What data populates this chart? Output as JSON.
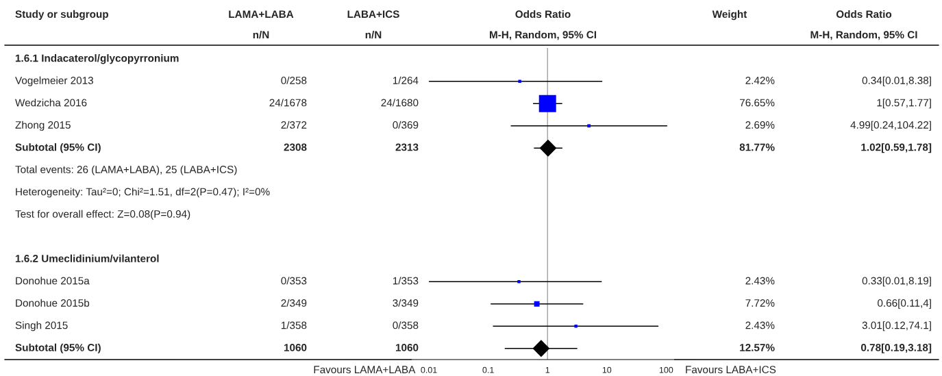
{
  "chart_data": [
    {
      "type": "other",
      "title": "Study or subgroup",
      "categories": [
        "1.6.1 Indacaterol/glycopyrronium",
        "Vogelmeier 2013",
        "Wedzicha 2016",
        "Zhong 2015",
        "Subtotal (95% CI)",
        "Total events: 26 (LAMA+LABA), 25 (LABA+ICS)",
        "Heterogeneity: Tau²=0; Chi²=1.51, df=2(P=0.47); I²=0%",
        "Test for overall effect: Z=0.08(P=0.94)",
        null,
        "1.6.2 Umeclidinium/vilanterol",
        "Donohue 2015a",
        "Donohue 2015b",
        "Singh 2015",
        "Subtotal (95% CI)"
      ]
    },
    {
      "type": "other",
      "title": "LAMA+LABA",
      "subtitle": "n/N",
      "categories": [
        null,
        "0/258",
        "24/1678",
        "2/372",
        "2308",
        null,
        null,
        null,
        null,
        null,
        "0/353",
        "2/349",
        "1/358",
        "1060"
      ]
    },
    {
      "type": "other",
      "title": "LABA+ICS",
      "subtitle": "n/N",
      "categories": [
        null,
        "1/264",
        "24/1680",
        "0/369",
        "2313",
        null,
        null,
        null,
        null,
        null,
        "1/353",
        "3/349",
        "0/358",
        "1060"
      ]
    },
    {
      "type": "scatter",
      "orientation": "horizontal",
      "title": "Odds Ratio",
      "subtitle": "M-H, Random, 95% CI",
      "log": "x",
      "xlim": [
        0.005,
        140
      ],
      "xticks": [
        0.01,
        0.1,
        1,
        10,
        100
      ],
      "categories": [
        null,
        null,
        null,
        null,
        null,
        null,
        null,
        null,
        null,
        null,
        null,
        null,
        null,
        null
      ],
      "ref_lines": [
        {
          "axis": "x",
          "value": 1,
          "color": "#a0a0a0"
        }
      ],
      "annotations": [
        "Favours LAMA+LABA",
        "Favours LABA+ICS"
      ],
      "series": [
        {
          "type": "bubble",
          "marker": "square",
          "color": "#0000ff",
          "values": [
            null,
            0.34,
            1,
            4.99,
            null,
            null,
            null,
            null,
            null,
            null,
            0.33,
            0.66,
            3.01,
            null
          ],
          "errors": [
            null,
            [
              0.01,
              8.38
            ],
            [
              0.57,
              1.77
            ],
            [
              0.24,
              104.22
            ],
            null,
            null,
            null,
            null,
            null,
            null,
            [
              0.01,
              8.19
            ],
            [
              0.11,
              4
            ],
            [
              0.12,
              74.1
            ],
            null
          ],
          "sizes": [
            null,
            0.0316,
            1,
            0.0351,
            null,
            null,
            null,
            null,
            null,
            null,
            0.0317,
            0.1007,
            0.0317,
            null
          ]
        },
        {
          "type": "scatter",
          "marker": "diamond",
          "color": "#000000",
          "values": [
            null,
            null,
            null,
            null,
            1.02,
            null,
            null,
            null,
            null,
            null,
            null,
            null,
            null,
            0.78
          ],
          "errors": [
            null,
            null,
            null,
            null,
            [
              0.59,
              1.78
            ],
            null,
            null,
            null,
            null,
            null,
            null,
            null,
            null,
            [
              0.19,
              3.18
            ]
          ]
        }
      ]
    },
    {
      "type": "other",
      "title": "Weight",
      "categories": [
        null,
        "2.42%",
        "76.65%",
        "2.69%",
        "81.77%",
        null,
        null,
        null,
        null,
        null,
        "2.43%",
        "7.72%",
        "2.43%",
        "12.57%"
      ]
    },
    {
      "type": "other",
      "title": "Odds Ratio",
      "subtitle": "M-H, Random, 95% CI",
      "categories": [
        null,
        "0.34[0.01,8.38]",
        "1[0.57,1.77]",
        "4.99[0.24,104.22]",
        "1.02[0.59,1.78]",
        null,
        null,
        null,
        null,
        null,
        "0.33[0.01,8.19]",
        "0.66[0.11,4]",
        "3.01[0.12,74.1]",
        "0.78[0.19,3.18]"
      ]
    }
  ]
}
